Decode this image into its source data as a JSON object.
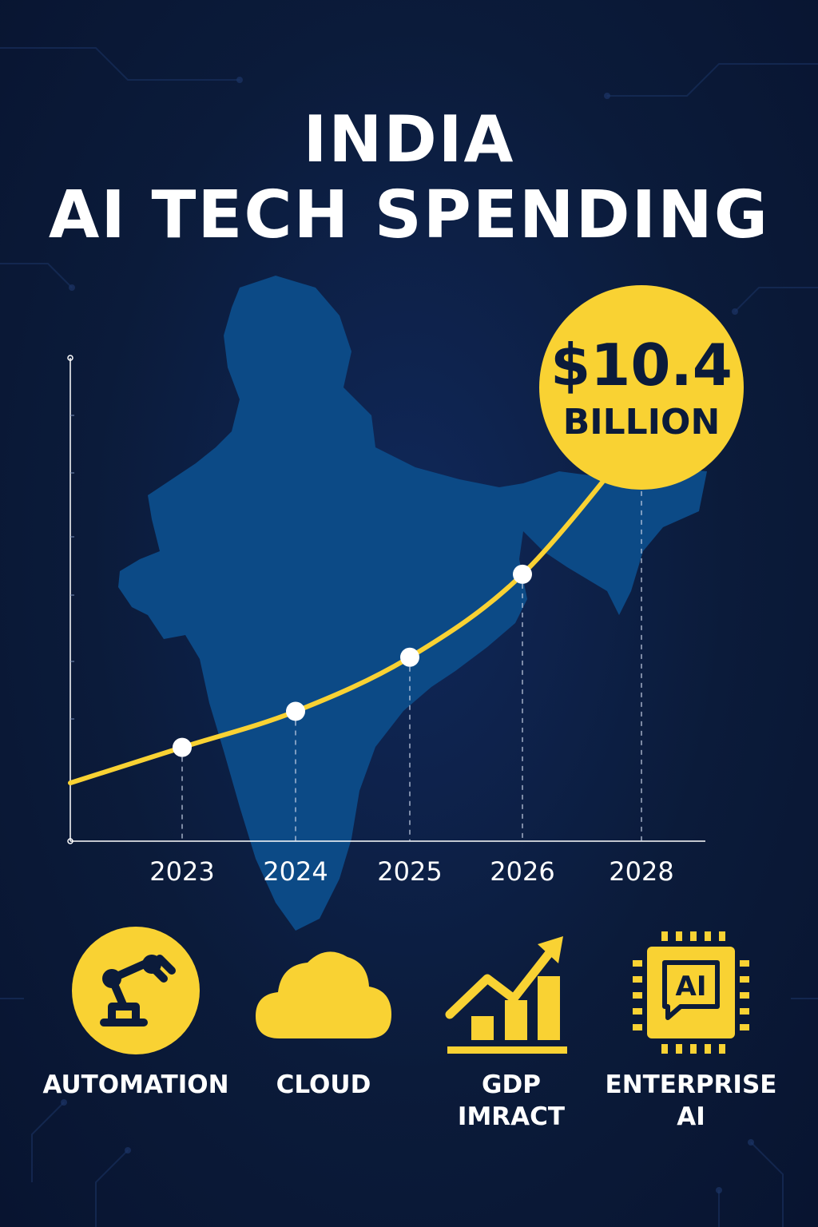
{
  "title": {
    "line1": "INDIA",
    "line2": "AI TECH SPENDING"
  },
  "colors": {
    "background": "#0b1b3a",
    "map": "#0c4a86",
    "accent": "#f9d233",
    "text": "#ffffff"
  },
  "chart_data": {
    "type": "line",
    "categories": [
      "2023",
      "2024",
      "2025",
      "2026",
      "2028"
    ],
    "values": [
      1.7,
      2.7,
      4.2,
      6.5,
      10.4
    ],
    "title": "",
    "xlabel": "",
    "ylabel": "",
    "ylim": [
      -0.9,
      12.5
    ],
    "grid": false,
    "callout": {
      "value": "$10.4",
      "unit": "BILLION"
    }
  },
  "icons": [
    {
      "name": "automation-icon",
      "label": [
        "AUTOMATION"
      ]
    },
    {
      "name": "cloud-icon",
      "label": [
        "CLOUD"
      ]
    },
    {
      "name": "gdp-chart-icon",
      "label": [
        "GDP",
        "IMRACT"
      ]
    },
    {
      "name": "ai-chip-icon",
      "label": [
        "ENTERPRISE",
        "AI"
      ]
    }
  ]
}
